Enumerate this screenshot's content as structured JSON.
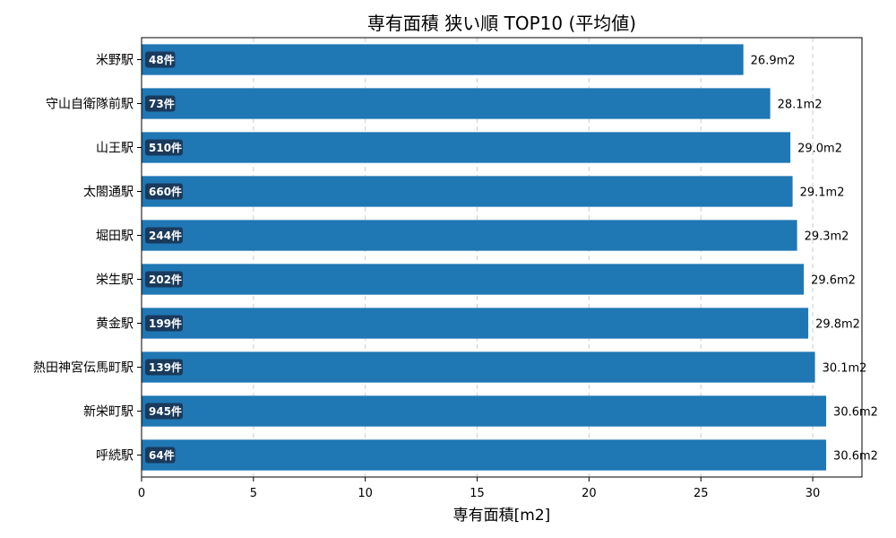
{
  "chart_data": {
    "type": "bar",
    "orientation": "horizontal",
    "title": "専有面積 狭い順 TOP10 (平均値)",
    "xlabel": "専有面積[m2]",
    "ylabel": "",
    "xlim": [
      0,
      32.2
    ],
    "xticks": [
      0,
      5,
      10,
      15,
      20,
      25,
      30
    ],
    "grid": "x-dashed",
    "bar_color": "#1f77b4",
    "badge_color": "#1a3a5c",
    "value_suffix": "m2",
    "categories": [
      "米野駅",
      "守山自衛隊前駅",
      "山王駅",
      "太閤通駅",
      "堀田駅",
      "栄生駅",
      "黄金駅",
      "熱田神宮伝馬町駅",
      "新栄町駅",
      "呼続駅"
    ],
    "values": [
      26.9,
      28.1,
      29.0,
      29.1,
      29.3,
      29.6,
      29.8,
      30.1,
      30.6,
      30.6
    ],
    "value_labels": [
      "26.9m2",
      "28.1m2",
      "29.0m2",
      "29.1m2",
      "29.3m2",
      "29.6m2",
      "29.8m2",
      "30.1m2",
      "30.6m2",
      "30.6m2"
    ],
    "counts": [
      "48件",
      "73件",
      "510件",
      "660件",
      "244件",
      "202件",
      "199件",
      "139件",
      "945件",
      "64件"
    ]
  }
}
